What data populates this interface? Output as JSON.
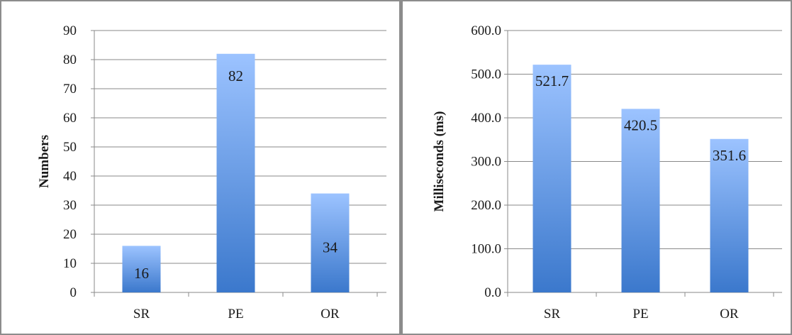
{
  "chart_data": [
    {
      "type": "bar",
      "categories": [
        "SR",
        "PE",
        "OR"
      ],
      "values": [
        16,
        82,
        34
      ],
      "value_labels": [
        "16",
        "82",
        "34"
      ],
      "ylabel": "Numbers",
      "ylim": [
        0,
        90
      ],
      "yticks": [
        0,
        10,
        20,
        30,
        40,
        50,
        60,
        70,
        80,
        90
      ],
      "ytick_labels": [
        "0",
        "10",
        "20",
        "30",
        "40",
        "50",
        "60",
        "70",
        "80",
        "90"
      ],
      "grid": true,
      "bar_color_top": "#9cc3ff",
      "bar_color_bottom": "#3b78cc"
    },
    {
      "type": "bar",
      "categories": [
        "SR",
        "PE",
        "OR"
      ],
      "values": [
        521.7,
        420.5,
        351.6
      ],
      "value_labels": [
        "521.7",
        "420.5",
        "351.6"
      ],
      "ylabel": "Milliseconds (ms)",
      "ylim": [
        0,
        600
      ],
      "yticks": [
        0,
        100,
        200,
        300,
        400,
        500,
        600
      ],
      "ytick_labels": [
        "0.0",
        "100.0",
        "200.0",
        "300.0",
        "400.0",
        "500.0",
        "600.0"
      ],
      "grid": true,
      "bar_color_top": "#9cc3ff",
      "bar_color_bottom": "#3b78cc"
    }
  ]
}
